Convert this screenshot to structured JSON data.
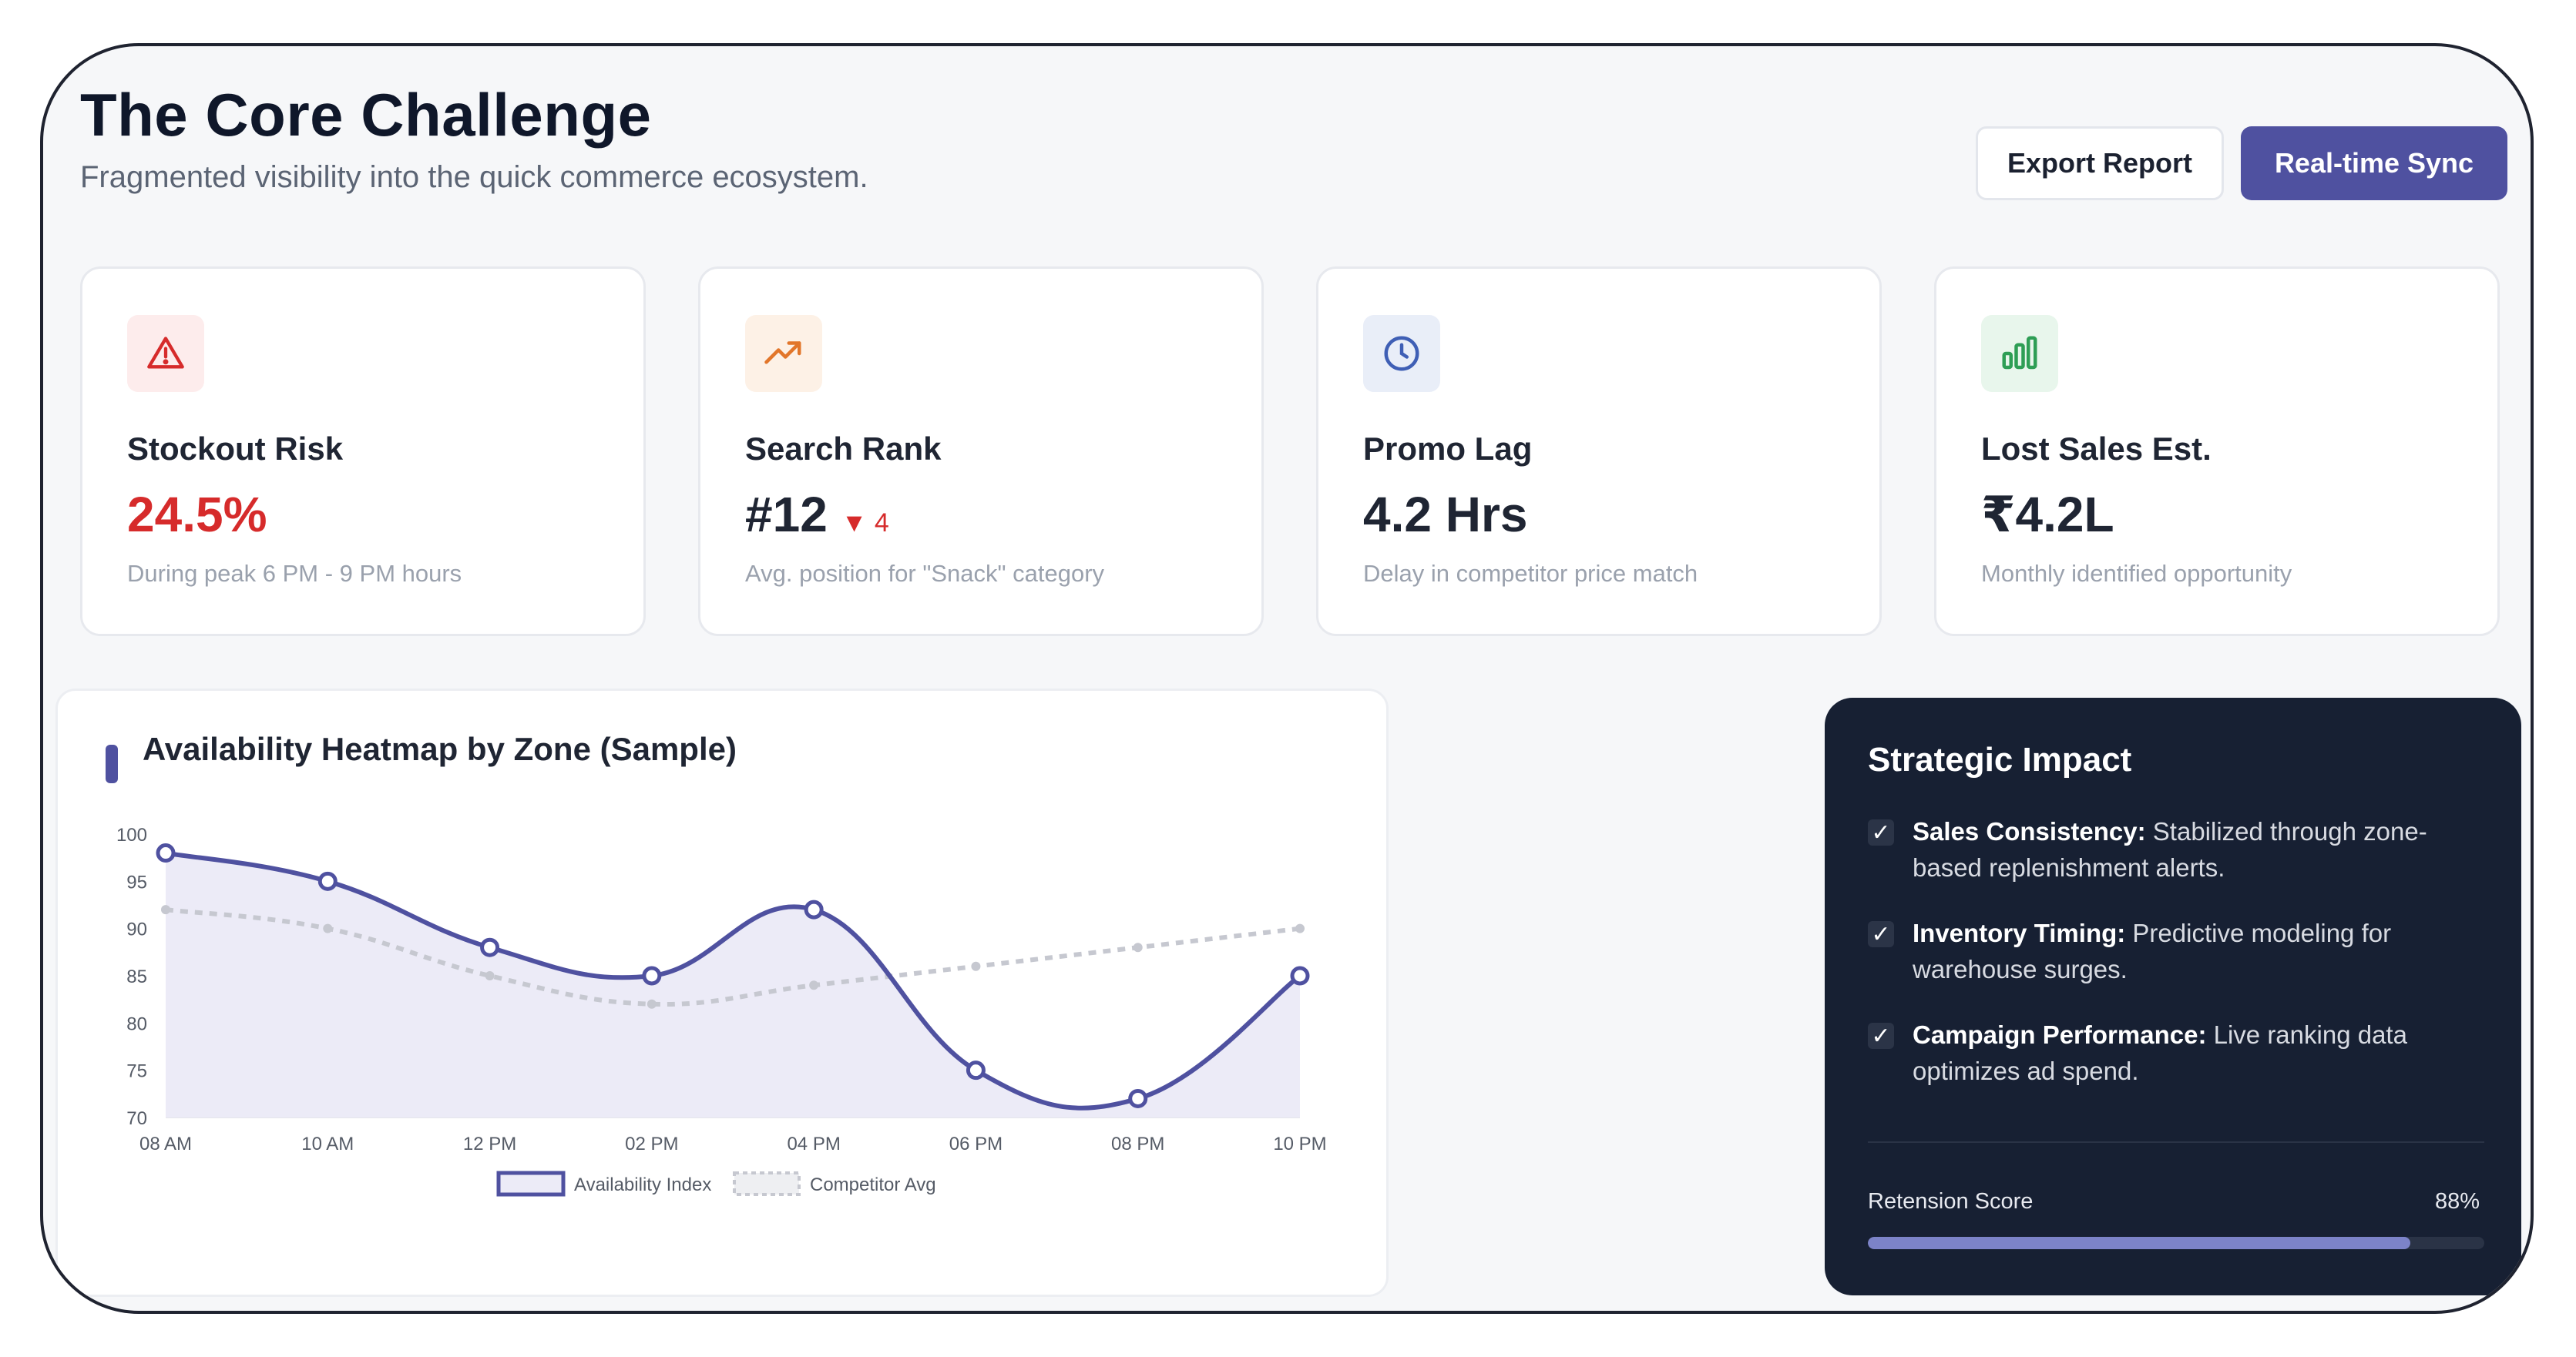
{
  "header": {
    "title": "The Core Challenge",
    "subtitle": "Fragmented visibility into the quick commerce ecosystem.",
    "export_label": "Export Report",
    "sync_label": "Real-time Sync"
  },
  "kpis": [
    {
      "icon": "warning-triangle-icon",
      "label": "Stockout Risk",
      "value": "24.5%",
      "sub": "During peak 6 PM - 9 PM hours",
      "accent": "#d62b2b"
    },
    {
      "icon": "trending-up-icon",
      "label": "Search Rank",
      "value": "#12",
      "delta": "▼ 4",
      "sub": "Avg. position for \"Snack\" category",
      "accent": "#e2762a"
    },
    {
      "icon": "clock-icon",
      "label": "Promo Lag",
      "value": "4.2 Hrs",
      "sub": "Delay in competitor price match",
      "accent": "#3f5fb5"
    },
    {
      "icon": "bar-chart-icon",
      "label": "Lost Sales Est.",
      "value": "₹4.2L",
      "sub": "Monthly identified opportunity",
      "accent": "#2e9e55"
    }
  ],
  "chart_card": {
    "title": "Availability Heatmap by Zone (Sample)"
  },
  "chart_data": {
    "type": "line",
    "categories": [
      "08 AM",
      "10 AM",
      "12 PM",
      "02 PM",
      "04 PM",
      "06 PM",
      "08 PM",
      "10 PM"
    ],
    "ylim": [
      70,
      100
    ],
    "yticks": [
      100,
      95,
      90,
      85,
      80,
      75,
      70
    ],
    "series": [
      {
        "name": "Availability Index",
        "values": [
          98,
          95,
          88,
          85,
          92,
          75,
          72,
          85
        ],
        "color": "#4f51a0",
        "fill": "#ecebf7"
      },
      {
        "name": "Competitor Avg",
        "values": [
          92,
          90,
          85,
          82,
          84,
          86,
          88,
          90
        ],
        "color": "#c6c8d0",
        "dashed": true
      }
    ],
    "legend_position": "bottom"
  },
  "impact": {
    "title": "Strategic Impact",
    "items": [
      {
        "head": "Sales Consistency:",
        "body": "Stabilized through zone-based replenishment alerts."
      },
      {
        "head": "Inventory Timing:",
        "body": "Predictive modeling for warehouse surges."
      },
      {
        "head": "Campaign Performance:",
        "body": "Live ranking data optimizes ad spend."
      }
    ],
    "check_glyph": "✓",
    "retention_label": "Retension Score",
    "retention_value": "88%",
    "retention_fraction": 0.88
  }
}
